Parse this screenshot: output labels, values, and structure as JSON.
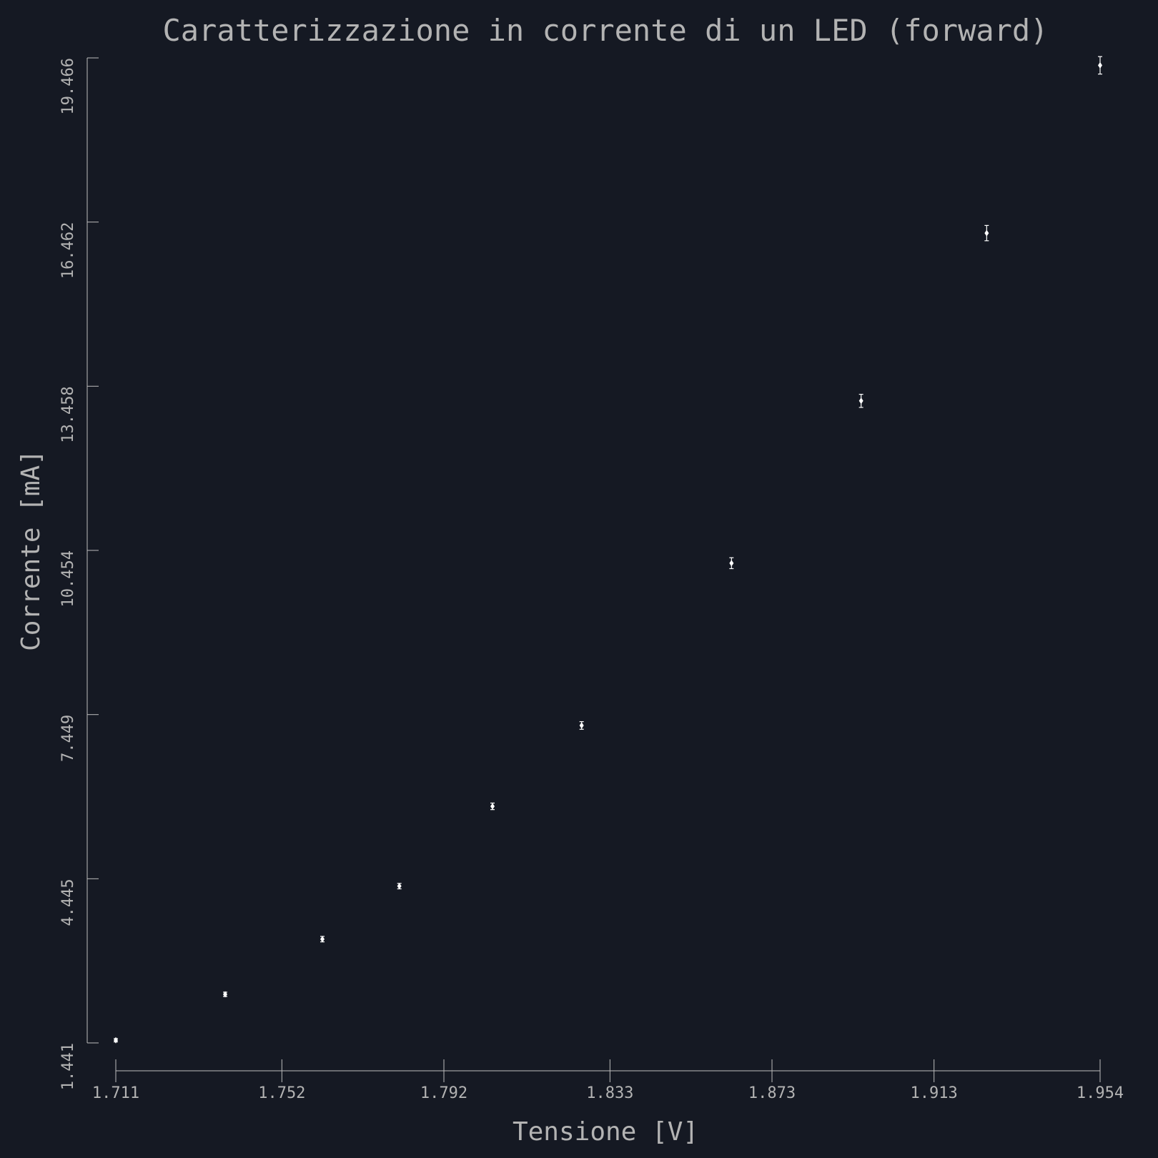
{
  "chart_data": {
    "type": "scatter",
    "title": "Caratterizzazione in corrente di un LED (forward)",
    "xlabel": "Tensione [V]",
    "ylabel": "Corrente [mA]",
    "xlim": [
      1.711,
      1.954
    ],
    "ylim": [
      1.441,
      19.466
    ],
    "xticks": [
      "1.711",
      "1.752",
      "1.792",
      "1.833",
      "1.873",
      "1.913",
      "1.954"
    ],
    "yticks": [
      "1.441",
      "4.445",
      "7.449",
      "10.454",
      "13.458",
      "16.462",
      "19.466"
    ],
    "grid": false,
    "error_bars": true,
    "series": [
      {
        "x": [
          1.711,
          1.738,
          1.762,
          1.781,
          1.804,
          1.826,
          1.863,
          1.895,
          1.926,
          1.954
        ],
        "y": [
          1.49,
          2.33,
          3.34,
          4.31,
          5.77,
          7.25,
          10.22,
          13.19,
          16.26,
          19.33
        ],
        "yerr": [
          0.03,
          0.04,
          0.05,
          0.05,
          0.06,
          0.07,
          0.1,
          0.12,
          0.14,
          0.16
        ]
      }
    ]
  }
}
